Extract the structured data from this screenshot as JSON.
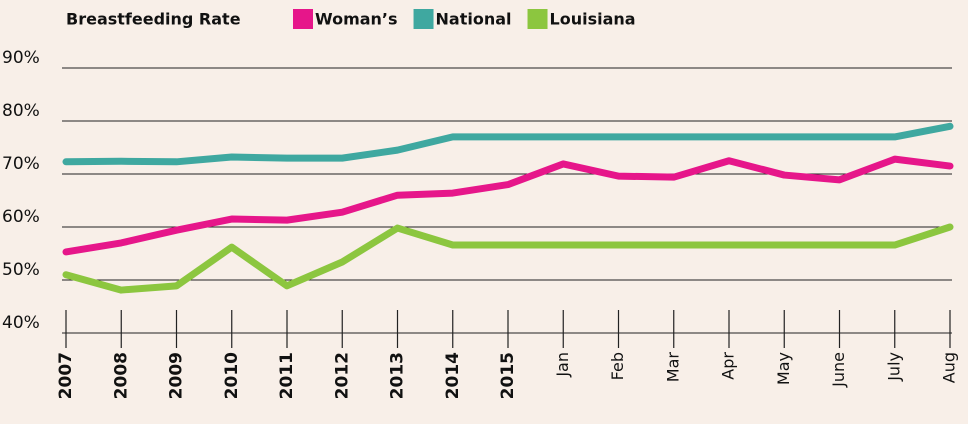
{
  "chart_data": {
    "type": "line",
    "title": "Breastfeeding Rate",
    "categories": [
      "2007",
      "2008",
      "2009",
      "2010",
      "2011",
      "2012",
      "2013",
      "2014",
      "2015",
      "Jan",
      "Feb",
      "Mar",
      "Apr",
      "May",
      "June",
      "July",
      "Aug"
    ],
    "series": [
      {
        "name": "Woman’s",
        "color": "#e6168a",
        "values": [
          55.3,
          57,
          59.4,
          61.5,
          61.3,
          62.8,
          66,
          66.4,
          68,
          71.9,
          69.6,
          69.4,
          72.5,
          69.8,
          68.9,
          72.8,
          71.5
        ]
      },
      {
        "name": "National",
        "color": "#3fa8a0",
        "values": [
          72.3,
          72.4,
          72.3,
          73.2,
          73,
          73,
          74.5,
          77,
          77,
          77,
          77,
          77,
          77,
          77,
          77,
          77,
          79
        ]
      },
      {
        "name": "Louisiana",
        "color": "#8cc63f",
        "values": [
          51,
          48.1,
          48.9,
          56.2,
          48.9,
          53.4,
          59.8,
          56.6,
          56.6,
          56.6,
          56.6,
          56.6,
          56.6,
          56.6,
          56.6,
          56.6,
          60
        ]
      }
    ],
    "ylim": [
      40,
      90
    ],
    "yticks": [
      {
        "value": 40,
        "label": "40%"
      },
      {
        "value": 50,
        "label": "50%"
      },
      {
        "value": 60,
        "label": "60%"
      },
      {
        "value": 70,
        "label": "70%"
      },
      {
        "value": 80,
        "label": "80%"
      },
      {
        "value": 90,
        "label": "90%"
      }
    ],
    "grid": true
  }
}
